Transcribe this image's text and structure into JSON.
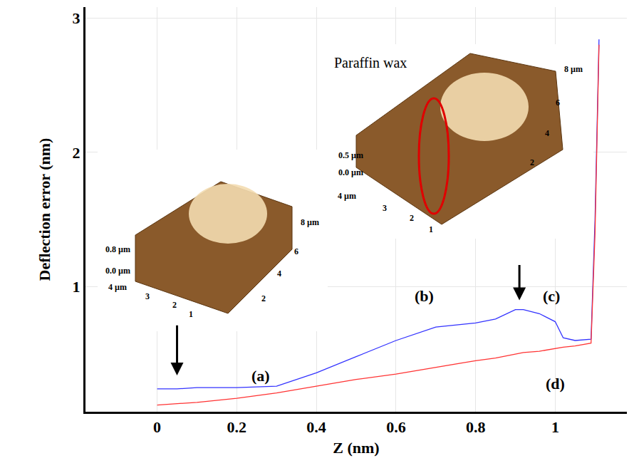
{
  "chart_data": {
    "type": "line",
    "xlabel": "Z (nm)",
    "ylabel": "Deflection error (nm)",
    "xlim": [
      -0.18,
      1.18
    ],
    "ylim": [
      0.07,
      3.08
    ],
    "xticks": [
      0,
      0.2,
      0.4,
      0.6,
      0.8,
      1
    ],
    "yticks": [
      1,
      2,
      3
    ],
    "grid": true,
    "x": [
      0,
      0.05,
      0.1,
      0.2,
      0.3,
      0.4,
      0.5,
      0.6,
      0.7,
      0.8,
      0.85,
      0.9,
      0.92,
      0.96,
      1.0,
      1.02,
      1.05,
      1.09,
      1.1,
      1.11
    ],
    "series": [
      {
        "color": "#3333ff",
        "values": [
          0.24,
          0.24,
          0.25,
          0.25,
          0.26,
          0.36,
          0.48,
          0.6,
          0.7,
          0.73,
          0.76,
          0.83,
          0.83,
          0.8,
          0.74,
          0.62,
          0.6,
          0.61,
          1.5,
          2.84
        ]
      },
      {
        "color": "#ff3333",
        "values": [
          0.12,
          0.13,
          0.14,
          0.17,
          0.21,
          0.26,
          0.31,
          0.35,
          0.4,
          0.45,
          0.47,
          0.5,
          0.51,
          0.52,
          0.54,
          0.55,
          0.56,
          0.58,
          1.4,
          2.8
        ]
      }
    ],
    "annotations": [
      "(a)",
      "(b)",
      "(c)",
      "(d)"
    ],
    "insets": [
      {
        "z_labels": [
          "0.8 µm",
          "0.0 µm"
        ],
        "x_labels": [
          "4 µm",
          "3",
          "2",
          "1"
        ],
        "y_labels": [
          "8 µm",
          "6",
          "4",
          "2"
        ]
      },
      {
        "label": "Paraffin wax",
        "z_labels": [
          "0.5 µm",
          "0.0 µm"
        ],
        "x_labels": [
          "4 µm",
          "3",
          "2",
          "1"
        ],
        "y_labels": [
          "8 µm",
          "6",
          "4",
          "2"
        ]
      }
    ]
  }
}
